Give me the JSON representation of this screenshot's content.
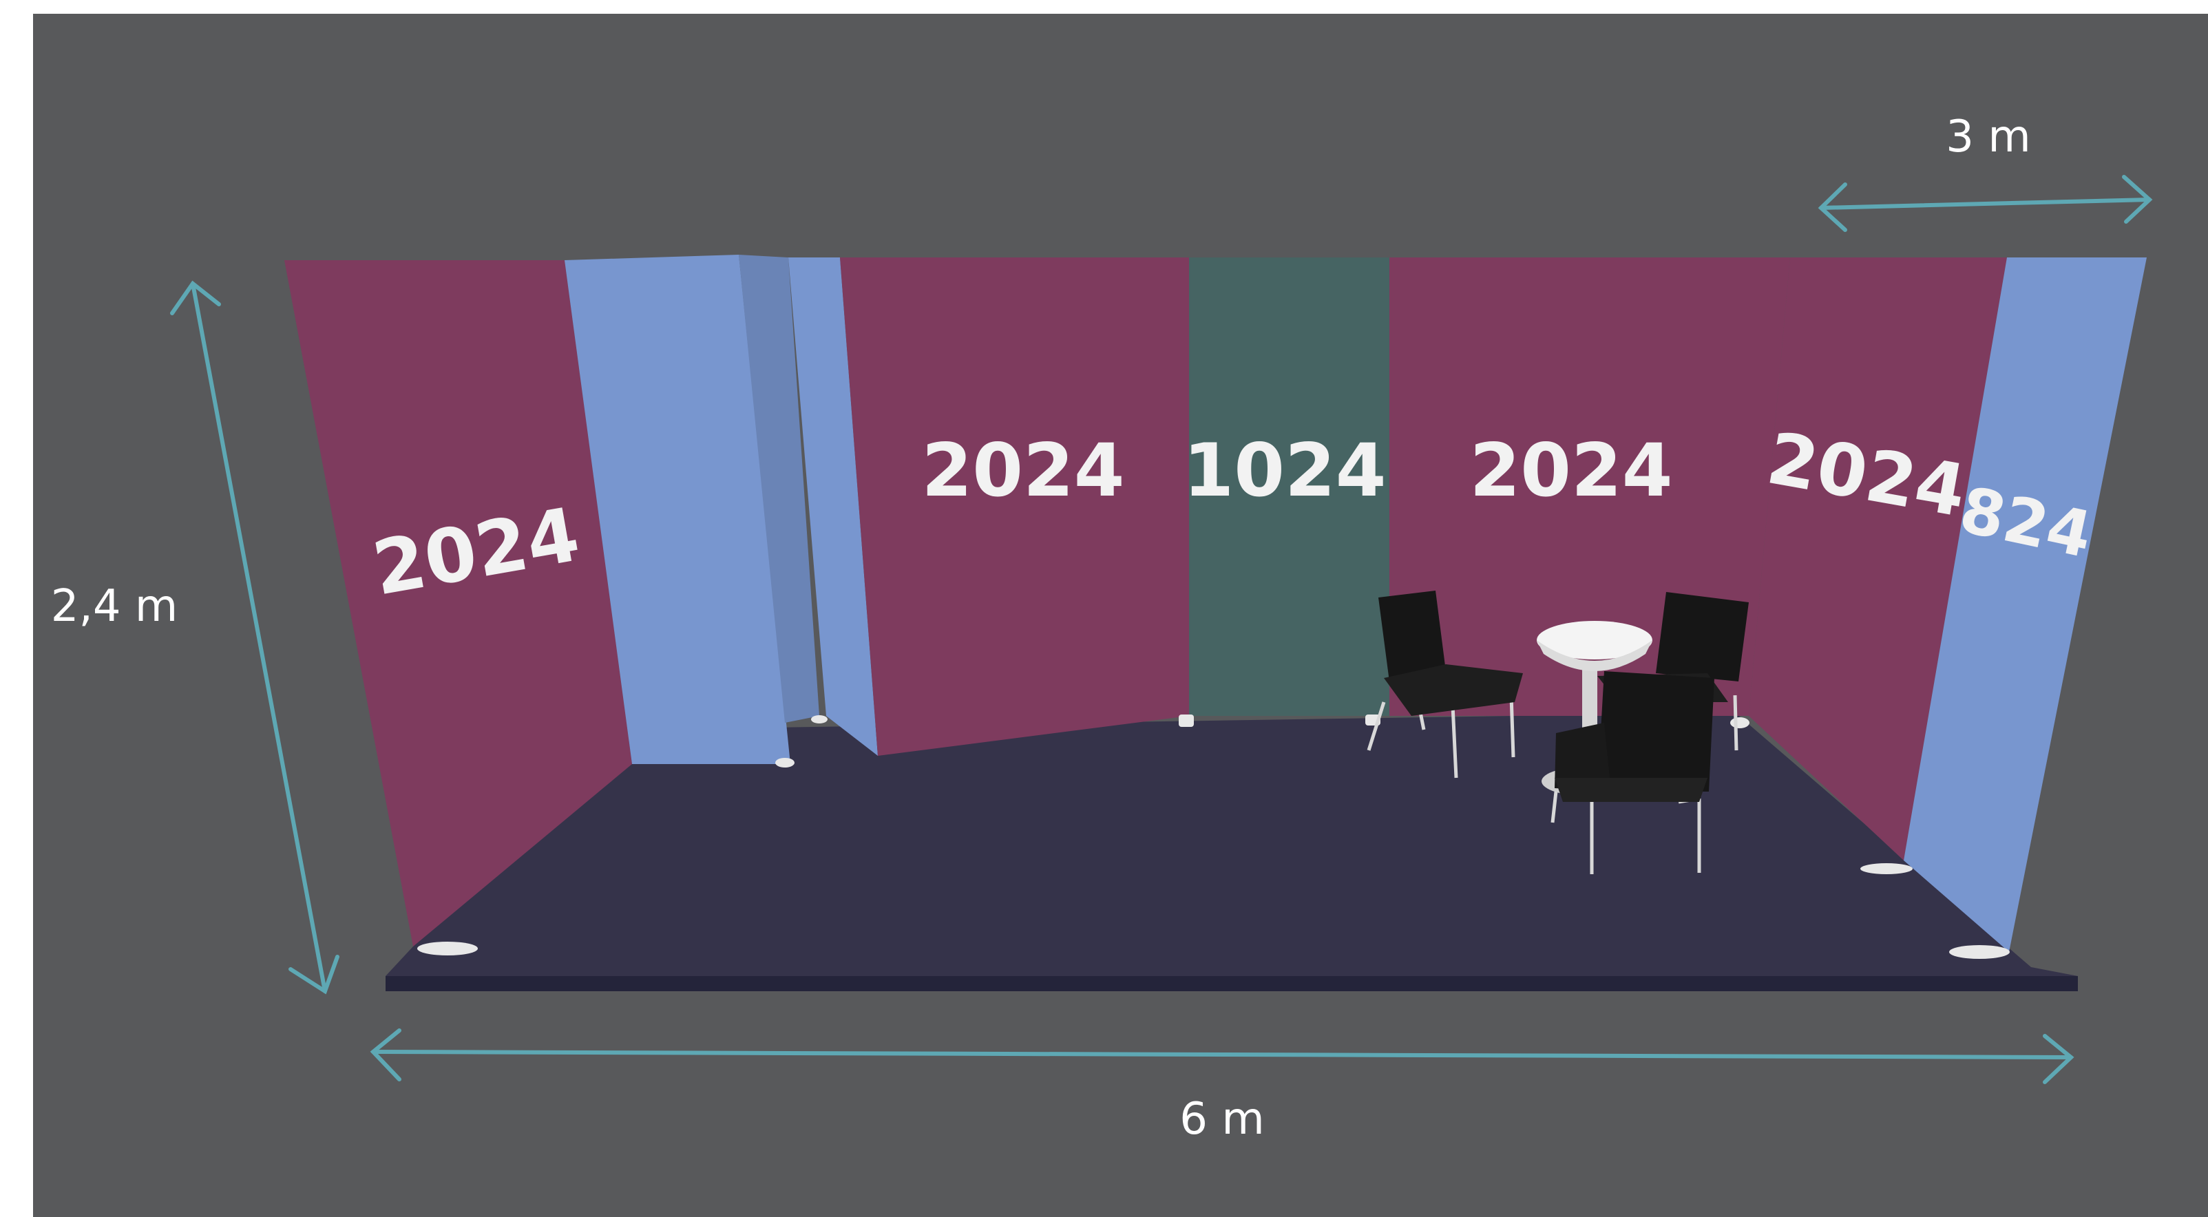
{
  "colors": {
    "background": "#58595b",
    "border_white": "#ffffff",
    "panel_magenta": "#7e3b5e",
    "panel_blue": "#7896cf",
    "panel_blue_shade": "#6a84b6",
    "panel_teal": "#466463",
    "floor": "#35334a",
    "floor_edge": "#24243a",
    "dimension_arrow": "#5ea8b4",
    "text": "#ffffff"
  },
  "dimensions": {
    "depth": "3 m",
    "height": "2,4 m",
    "width": "6 m"
  },
  "panels": {
    "left_wall": "2024",
    "back_left": "2024",
    "back_center": "1024",
    "back_right": "2024",
    "right_wall": "2024",
    "right_front": "824"
  },
  "icons": {
    "chair": "chair-icon",
    "table": "round-table-icon"
  }
}
